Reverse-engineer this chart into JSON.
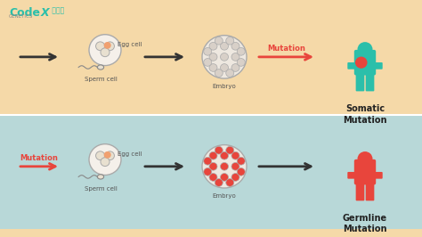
{
  "bg_top": "#F5D9A8",
  "bg_bottom": "#B8D8D8",
  "teal_person": "#2BBFAA",
  "red_person": "#E8453C",
  "mutation_arrow_color": "#E8453C",
  "normal_arrow_color": "#333333",
  "label_color": "#555555",
  "somatic_label": "Somatic\nMutation",
  "germline_label": "Germline\nMutation",
  "mutation_text": "Mutation",
  "egg_label": "Egg cell",
  "sperm_label": "Sperm cell",
  "embryo_label": "Embryo",
  "codex_color": "#2BBFAA",
  "orange_spot": "#F0A070",
  "red_spot": "#E8453C",
  "divider_color": "#FFFFFF"
}
